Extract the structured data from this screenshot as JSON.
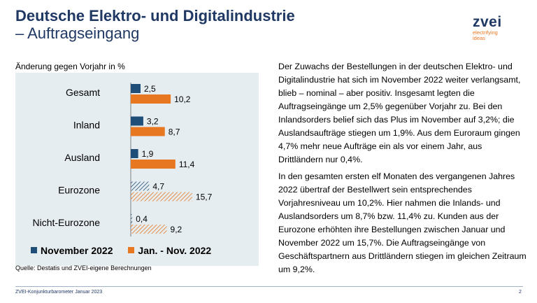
{
  "header": {
    "title_line1": "Deutsche Elektro- und Digitalindustrie",
    "title_line2": "– Auftragseingang"
  },
  "logo": {
    "word": "zvei",
    "tagline_1": "electrifying",
    "tagline_2": "ideas"
  },
  "colors": {
    "title": "#1f3864",
    "series_nov": "#1f4e79",
    "series_jan_nov": "#e87722",
    "plot_bg": "#e6edf0"
  },
  "chart_data": {
    "type": "bar",
    "orientation": "horizontal",
    "ylabel": "Änderung gegen Vorjahr in %",
    "categories": [
      "Gesamt",
      "Inland",
      "Ausland",
      "Eurozone",
      "Nicht-Eurozone"
    ],
    "series": [
      {
        "name": "November 2022",
        "values": [
          2.5,
          3.2,
          1.9,
          4.7,
          0.4
        ],
        "labels": [
          "2,5",
          "3,2",
          "1,9",
          "4,7",
          "0,4"
        ]
      },
      {
        "name": "Jan. - Nov. 2022",
        "values": [
          10.2,
          8.7,
          11.4,
          15.7,
          9.2
        ],
        "labels": [
          "10,2",
          "8,7",
          "11,4",
          "15,7",
          "9,2"
        ]
      }
    ],
    "hatched_categories": [
      "Eurozone",
      "Nicht-Eurozone"
    ],
    "xlim": [
      0,
      18
    ],
    "legend_position": "bottom"
  },
  "source": "Quelle: Destatis und ZVEI-eigene Berechnungen",
  "body": {
    "p1": "Der Zuwachs der Bestellungen in der deutschen Elektro- und Digitalindustrie hat sich im November 2022 weiter verlangsamt, blieb – nominal – aber positiv. Insgesamt legten die Auftragseingänge um 2,5% gegenüber Vorjahr zu. Bei den Inlandsorders belief sich das Plus im November auf 3,2%; die Auslandsaufträge stiegen um 1,9%. Aus dem Euroraum gingen 4,7% mehr neue Aufträge ein als vor einem Jahr, aus Drittländern nur 0,4%.",
    "p2": "In den gesamten ersten elf Monaten des vergangenen Jahres 2022 übertraf der Bestellwert sein entsprechendes Vorjahresniveau um 10,2%. Hier nahmen die Inlands- und Auslandsorders um 8,7% bzw. 11,4% zu. Kunden aus der Eurozone erhöhten ihre Bestellungen zwischen Januar und November 2022 um 15,7%. Die Auftragseingänge von Geschäftspartnern aus Drittländern stiegen im gleichen Zeitraum um 9,2%."
  },
  "footer": {
    "left": "ZVEI-Konjunkturbarometer Januar 2023",
    "page": "2"
  }
}
